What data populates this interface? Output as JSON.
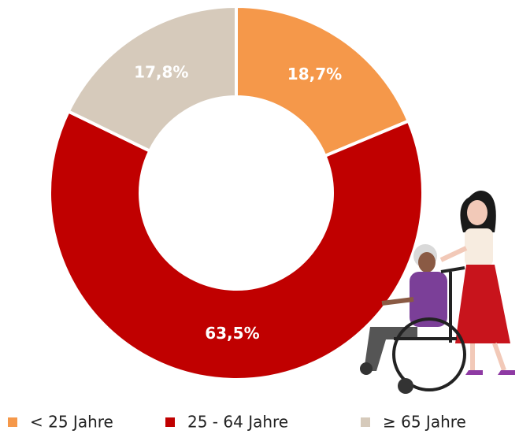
{
  "chart_data": {
    "type": "donut",
    "categories": [
      "< 25 Jahre",
      "25 - 64 Jahre",
      "≥ 65 Jahre"
    ],
    "values": [
      18.7,
      63.5,
      17.8
    ],
    "value_labels": [
      "18,7%",
      "63,5%",
      "17,8%"
    ],
    "colors": [
      "#f5984a",
      "#c00000",
      "#d6cabb"
    ]
  }
}
